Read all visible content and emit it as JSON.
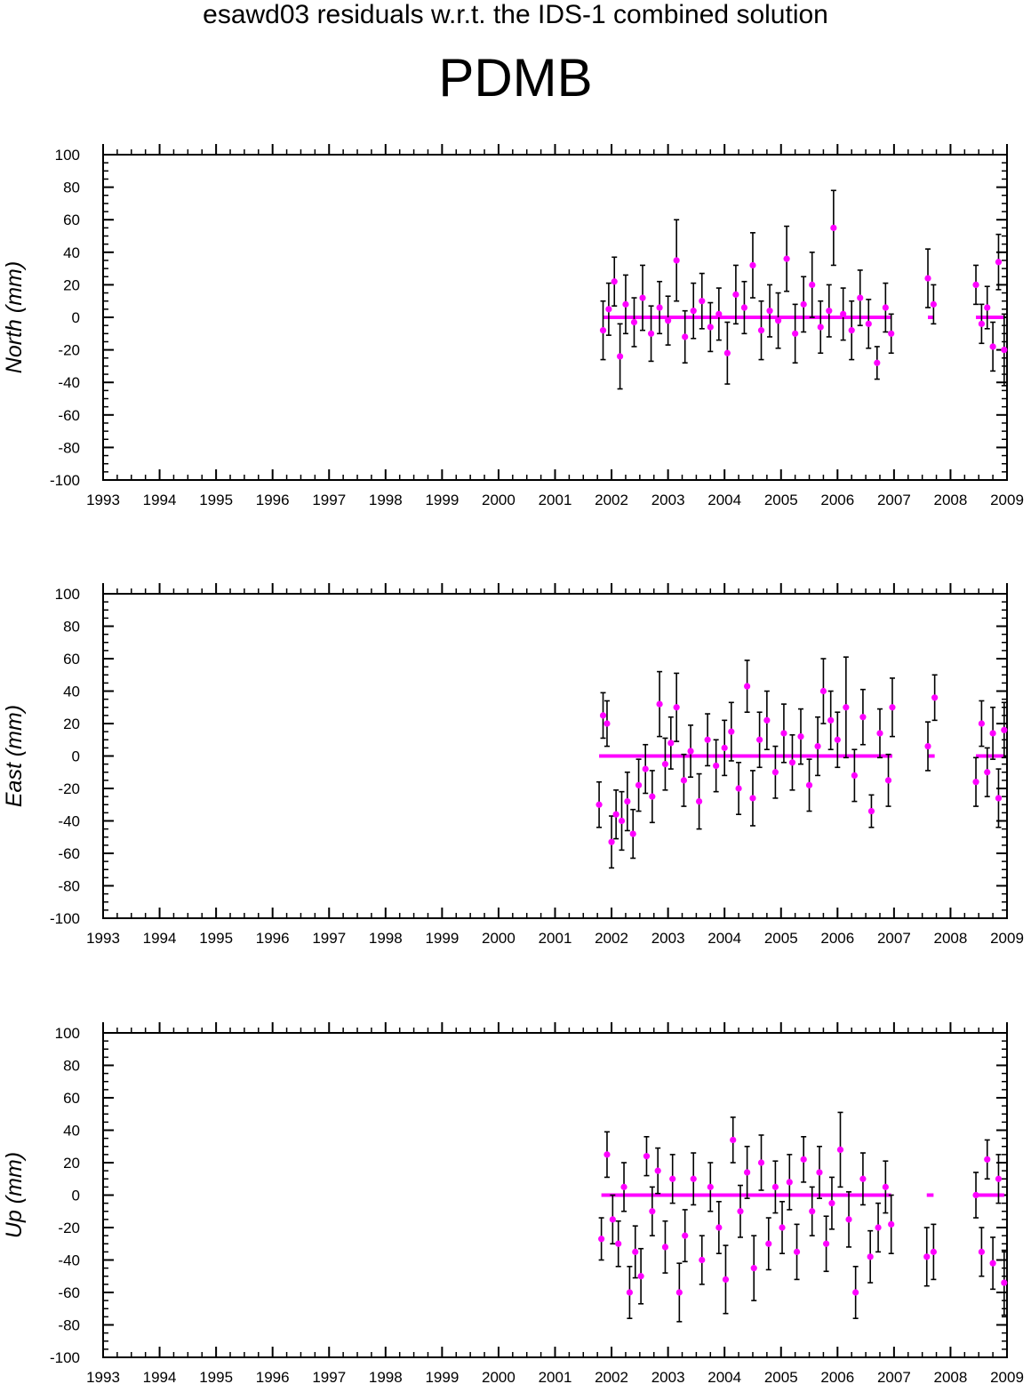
{
  "suptitle": "esawd03 residuals w.r.t. the IDS-1 combined solution",
  "station": "PDMB",
  "colors": {
    "point": "#ff00ff",
    "errorbar": "#000000",
    "zero_line": "#ff00ff",
    "axes": "#000000"
  },
  "chart_data": [
    {
      "type": "scatter",
      "ylabel": "North (mm)",
      "xlim": [
        1993,
        2009
      ],
      "ylim": [
        -100,
        100
      ],
      "xticks": [
        "1993",
        "1994",
        "1995",
        "1996",
        "1997",
        "1998",
        "1999",
        "2000",
        "2001",
        "2002",
        "2003",
        "2004",
        "2005",
        "2006",
        "2007",
        "2008",
        "2009"
      ],
      "yticks": [
        100,
        80,
        60,
        40,
        20,
        0,
        -20,
        -40,
        -60,
        -80,
        -100
      ],
      "series": [
        {
          "x": [
            2001.85,
            2001.95,
            2002.05,
            2002.15,
            2002.25,
            2002.4,
            2002.55,
            2002.7,
            2002.85,
            2003.0,
            2003.15,
            2003.3,
            2003.45,
            2003.6,
            2003.75,
            2003.9,
            2004.05,
            2004.2,
            2004.35,
            2004.5,
            2004.65,
            2004.8,
            2004.95,
            2005.1,
            2005.25,
            2005.4,
            2005.55,
            2005.7,
            2005.85,
            2005.93,
            2006.1,
            2006.25,
            2006.4,
            2006.55,
            2006.7,
            2006.85,
            2006.95,
            2007.6,
            2007.7,
            2008.45,
            2008.55,
            2008.65,
            2008.75,
            2008.85,
            2008.95
          ],
          "y": [
            -8,
            5,
            22,
            -24,
            8,
            -3,
            12,
            -10,
            6,
            -2,
            35,
            -12,
            4,
            10,
            -6,
            2,
            -22,
            14,
            6,
            32,
            -8,
            4,
            -2,
            36,
            -10,
            8,
            20,
            -6,
            4,
            55,
            2,
            -8,
            12,
            -4,
            -28,
            6,
            -10,
            24,
            8,
            20,
            -4,
            6,
            -18,
            34,
            -20
          ],
          "err": [
            18,
            16,
            15,
            20,
            18,
            15,
            20,
            17,
            16,
            15,
            25,
            16,
            17,
            17,
            15,
            16,
            19,
            18,
            16,
            20,
            18,
            16,
            17,
            20,
            18,
            17,
            20,
            16,
            16,
            23,
            16,
            18,
            17,
            15,
            10,
            15,
            12,
            18,
            12,
            12,
            12,
            13,
            15,
            17,
            22
          ]
        }
      ]
    },
    {
      "type": "scatter",
      "ylabel": "East (mm)",
      "xlim": [
        1993,
        2009
      ],
      "ylim": [
        -100,
        100
      ],
      "xticks": [
        "1993",
        "1994",
        "1995",
        "1996",
        "1997",
        "1998",
        "1999",
        "2000",
        "2001",
        "2002",
        "2003",
        "2004",
        "2005",
        "2006",
        "2007",
        "2008",
        "2009"
      ],
      "yticks": [
        100,
        80,
        60,
        40,
        20,
        0,
        -20,
        -40,
        -60,
        -80,
        -100
      ],
      "series": [
        {
          "x": [
            2001.78,
            2001.85,
            2001.92,
            2002.0,
            2002.08,
            2002.18,
            2002.28,
            2002.38,
            2002.48,
            2002.6,
            2002.72,
            2002.85,
            2002.95,
            2003.05,
            2003.15,
            2003.28,
            2003.4,
            2003.55,
            2003.7,
            2003.85,
            2004.0,
            2004.12,
            2004.25,
            2004.4,
            2004.5,
            2004.62,
            2004.75,
            2004.9,
            2005.05,
            2005.2,
            2005.35,
            2005.5,
            2005.65,
            2005.75,
            2005.88,
            2006.0,
            2006.15,
            2006.3,
            2006.45,
            2006.6,
            2006.75,
            2006.9,
            2006.97,
            2007.6,
            2007.72,
            2008.45,
            2008.55,
            2008.65,
            2008.75,
            2008.85,
            2008.95
          ],
          "y": [
            -30,
            25,
            20,
            -53,
            -36,
            -40,
            -28,
            -48,
            -18,
            -8,
            -25,
            32,
            -5,
            8,
            30,
            -15,
            3,
            -28,
            10,
            -6,
            5,
            15,
            -20,
            43,
            -26,
            10,
            22,
            -10,
            14,
            -4,
            12,
            -18,
            6,
            40,
            22,
            10,
            30,
            -12,
            24,
            -34,
            14,
            -15,
            30,
            6,
            36,
            -16,
            20,
            -10,
            14,
            -26,
            16
          ],
          "err": [
            14,
            14,
            14,
            16,
            15,
            18,
            18,
            15,
            16,
            15,
            16,
            20,
            16,
            16,
            21,
            16,
            16,
            17,
            16,
            16,
            17,
            18,
            16,
            16,
            17,
            17,
            18,
            16,
            18,
            17,
            17,
            16,
            18,
            20,
            18,
            17,
            31,
            16,
            17,
            10,
            15,
            16,
            18,
            15,
            14,
            15,
            14,
            15,
            16,
            18,
            17
          ]
        }
      ]
    },
    {
      "type": "scatter",
      "ylabel": "Up (mm)",
      "xlim": [
        1993,
        2009
      ],
      "ylim": [
        -100,
        100
      ],
      "xticks": [
        "1993",
        "1994",
        "1995",
        "1996",
        "1997",
        "1998",
        "1999",
        "2000",
        "2001",
        "2002",
        "2003",
        "2004",
        "2005",
        "2006",
        "2007",
        "2008",
        "2009"
      ],
      "yticks": [
        100,
        80,
        60,
        40,
        20,
        0,
        -20,
        -40,
        -60,
        -80,
        -100
      ],
      "series": [
        {
          "x": [
            2001.82,
            2001.92,
            2002.02,
            2002.12,
            2002.22,
            2002.32,
            2002.42,
            2002.52,
            2002.62,
            2002.72,
            2002.82,
            2002.95,
            2003.08,
            2003.2,
            2003.3,
            2003.45,
            2003.6,
            2003.75,
            2003.9,
            2004.02,
            2004.15,
            2004.28,
            2004.4,
            2004.52,
            2004.65,
            2004.78,
            2004.9,
            2005.02,
            2005.15,
            2005.28,
            2005.4,
            2005.55,
            2005.68,
            2005.8,
            2005.9,
            2006.05,
            2006.2,
            2006.32,
            2006.45,
            2006.58,
            2006.72,
            2006.85,
            2006.95,
            2007.58,
            2007.7,
            2008.45,
            2008.55,
            2008.65,
            2008.75,
            2008.85,
            2008.95
          ],
          "y": [
            -27,
            25,
            -15,
            -30,
            5,
            -60,
            -35,
            -50,
            24,
            -10,
            15,
            -32,
            10,
            -60,
            -25,
            10,
            -40,
            5,
            -20,
            -52,
            34,
            -10,
            14,
            -45,
            20,
            -30,
            5,
            -20,
            8,
            -35,
            22,
            -10,
            14,
            -30,
            -5,
            28,
            -15,
            -60,
            10,
            -38,
            -20,
            5,
            -18,
            -38,
            -35,
            0,
            -35,
            22,
            -42,
            10,
            -54
          ],
          "err": [
            13,
            14,
            15,
            14,
            15,
            16,
            16,
            17,
            12,
            15,
            14,
            16,
            15,
            18,
            16,
            16,
            15,
            15,
            16,
            21,
            14,
            16,
            16,
            20,
            17,
            16,
            16,
            16,
            17,
            17,
            14,
            15,
            16,
            17,
            16,
            23,
            17,
            16,
            16,
            16,
            15,
            16,
            18,
            18,
            17,
            14,
            15,
            12,
            16,
            15,
            20
          ]
        }
      ]
    }
  ]
}
